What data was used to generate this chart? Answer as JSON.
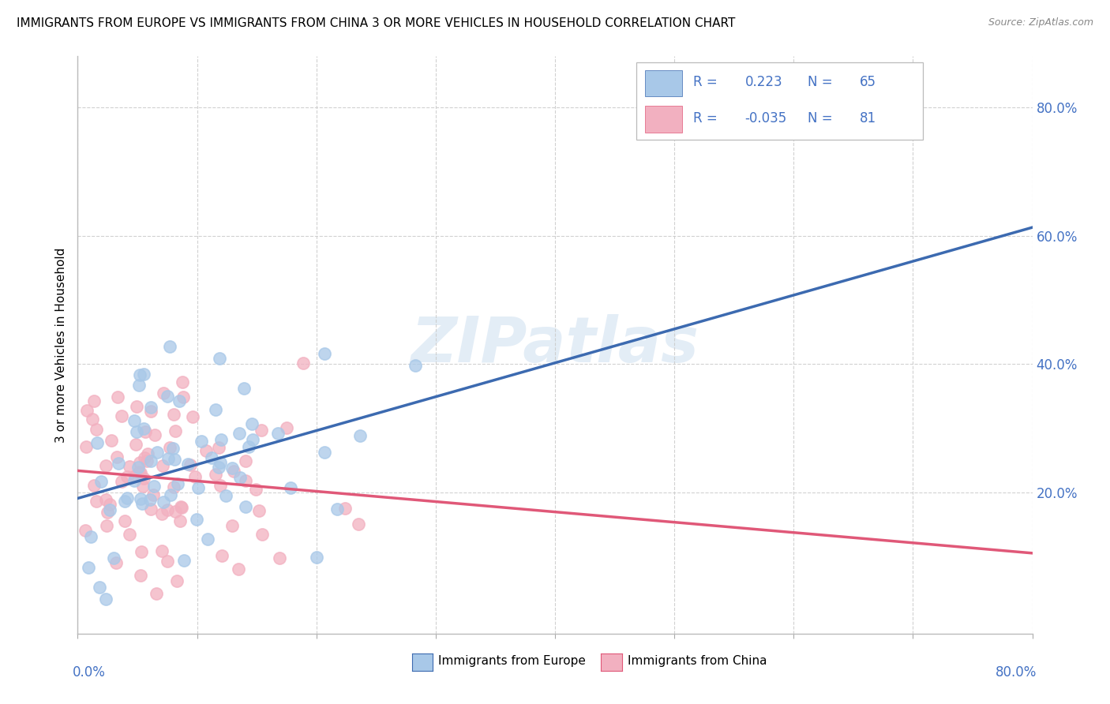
{
  "title": "IMMIGRANTS FROM EUROPE VS IMMIGRANTS FROM CHINA 3 OR MORE VEHICLES IN HOUSEHOLD CORRELATION CHART",
  "source": "Source: ZipAtlas.com",
  "ylabel": "3 or more Vehicles in Household",
  "ytick_values": [
    0.2,
    0.4,
    0.6,
    0.8
  ],
  "xlim": [
    0.0,
    0.8
  ],
  "ylim": [
    -0.02,
    0.88
  ],
  "europe_R": 0.223,
  "europe_N": 65,
  "china_R": -0.035,
  "china_N": 81,
  "europe_color": "#a8c8e8",
  "europe_edge_color": "#a8c8e8",
  "europe_line_color": "#3c6ab0",
  "china_color": "#f2b0c0",
  "china_edge_color": "#f2b0c0",
  "china_line_color": "#e05878",
  "axis_label_color": "#4472c4",
  "legend_text_color": "#4472c4",
  "watermark": "ZIPatlas",
  "grid_color": "#cccccc",
  "legend_europe_label": "Immigrants from Europe",
  "legend_china_label": "Immigrants from China"
}
